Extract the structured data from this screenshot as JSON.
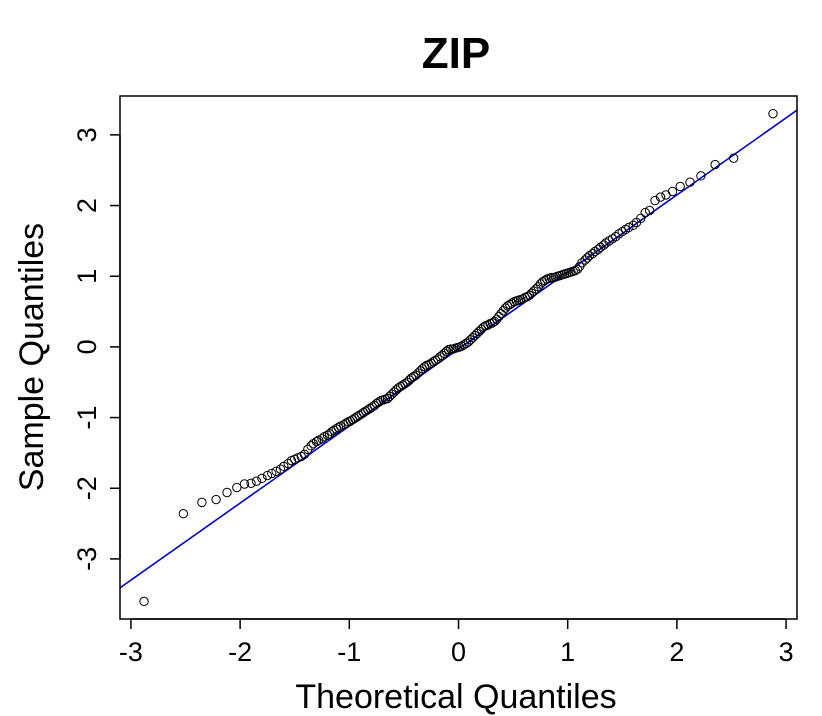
{
  "chart_data": {
    "type": "scatter",
    "title": "ZIP",
    "xlabel": "Theoretical Quantiles",
    "ylabel": "Sample Quantiles",
    "xlim": [
      -3.1,
      3.1
    ],
    "ylim": [
      -3.85,
      3.55
    ],
    "xticks": [
      -3,
      -2,
      -1,
      0,
      1,
      2,
      3
    ],
    "yticks": [
      -3,
      -2,
      -1,
      0,
      1,
      2,
      3
    ],
    "xtick_labels": [
      "-3",
      "-2",
      "-1",
      "0",
      "1",
      "2",
      "3"
    ],
    "ytick_labels": [
      "-3",
      "-2",
      "-1",
      "0",
      "1",
      "2",
      "3"
    ],
    "grid": false,
    "marker": "open-circle",
    "colors": {
      "points": "#000000",
      "reference_line": "#0000cc"
    },
    "reference_line": {
      "slope": 1.09,
      "intercept": -0.03
    },
    "points": [
      [
        -2.88,
        -3.6
      ],
      [
        -2.52,
        -2.36
      ],
      [
        -2.35,
        -2.2
      ],
      [
        -2.22,
        -2.16
      ],
      [
        -2.12,
        -2.06
      ],
      [
        -2.03,
        -1.99
      ],
      [
        -1.96,
        -1.94
      ],
      [
        -1.9,
        -1.93
      ],
      [
        -1.85,
        -1.9
      ],
      [
        -1.8,
        -1.86
      ],
      [
        -1.75,
        -1.82
      ],
      [
        -1.71,
        -1.79
      ],
      [
        -1.67,
        -1.76
      ],
      [
        -1.63,
        -1.73
      ],
      [
        -1.6,
        -1.69
      ],
      [
        -1.56,
        -1.65
      ],
      [
        -1.53,
        -1.61
      ],
      [
        -1.5,
        -1.59
      ],
      [
        -1.47,
        -1.57
      ],
      [
        -1.44,
        -1.55
      ],
      [
        -1.41,
        -1.52
      ],
      [
        -1.38,
        -1.45
      ],
      [
        -1.35,
        -1.4
      ],
      [
        -1.33,
        -1.37
      ],
      [
        -1.3,
        -1.34
      ],
      [
        -1.28,
        -1.32
      ],
      [
        -1.25,
        -1.3
      ],
      [
        -1.23,
        -1.27
      ],
      [
        -1.2,
        -1.25
      ],
      [
        -1.18,
        -1.23
      ],
      [
        -1.16,
        -1.2
      ],
      [
        -1.14,
        -1.18
      ],
      [
        -1.12,
        -1.16
      ],
      [
        -1.1,
        -1.14
      ],
      [
        -1.08,
        -1.12
      ],
      [
        -1.05,
        -1.1
      ],
      [
        -1.03,
        -1.08
      ],
      [
        -1.01,
        -1.06
      ],
      [
        -0.99,
        -1.05
      ],
      [
        -0.97,
        -1.03
      ],
      [
        -0.95,
        -1.01
      ],
      [
        -0.93,
        -0.99
      ],
      [
        -0.91,
        -0.97
      ],
      [
        -0.89,
        -0.95
      ],
      [
        -0.87,
        -0.93
      ],
      [
        -0.85,
        -0.91
      ],
      [
        -0.83,
        -0.89
      ],
      [
        -0.81,
        -0.87
      ],
      [
        -0.79,
        -0.85
      ],
      [
        -0.77,
        -0.83
      ],
      [
        -0.75,
        -0.8
      ],
      [
        -0.73,
        -0.78
      ],
      [
        -0.71,
        -0.76
      ],
      [
        -0.69,
        -0.75
      ],
      [
        -0.67,
        -0.74
      ],
      [
        -0.65,
        -0.73
      ],
      [
        -0.63,
        -0.7
      ],
      [
        -0.61,
        -0.67
      ],
      [
        -0.59,
        -0.64
      ],
      [
        -0.57,
        -0.61
      ],
      [
        -0.55,
        -0.58
      ],
      [
        -0.53,
        -0.56
      ],
      [
        -0.51,
        -0.54
      ],
      [
        -0.49,
        -0.52
      ],
      [
        -0.47,
        -0.5
      ],
      [
        -0.45,
        -0.47
      ],
      [
        -0.43,
        -0.44
      ],
      [
        -0.41,
        -0.42
      ],
      [
        -0.39,
        -0.4
      ],
      [
        -0.37,
        -0.37
      ],
      [
        -0.35,
        -0.34
      ],
      [
        -0.33,
        -0.31
      ],
      [
        -0.31,
        -0.28
      ],
      [
        -0.29,
        -0.26
      ],
      [
        -0.27,
        -0.25
      ],
      [
        -0.25,
        -0.23
      ],
      [
        -0.23,
        -0.21
      ],
      [
        -0.21,
        -0.19
      ],
      [
        -0.19,
        -0.17
      ],
      [
        -0.17,
        -0.14
      ],
      [
        -0.15,
        -0.12
      ],
      [
        -0.13,
        -0.09
      ],
      [
        -0.11,
        -0.06
      ],
      [
        -0.09,
        -0.04
      ],
      [
        -0.07,
        -0.03
      ],
      [
        -0.05,
        -0.03
      ],
      [
        -0.03,
        -0.02
      ],
      [
        -0.01,
        -0.01
      ],
      [
        0.01,
        0.0
      ],
      [
        0.03,
        0.01
      ],
      [
        0.05,
        0.03
      ],
      [
        0.07,
        0.05
      ],
      [
        0.09,
        0.07
      ],
      [
        0.11,
        0.1
      ],
      [
        0.13,
        0.13
      ],
      [
        0.15,
        0.16
      ],
      [
        0.17,
        0.19
      ],
      [
        0.19,
        0.22
      ],
      [
        0.21,
        0.25
      ],
      [
        0.23,
        0.28
      ],
      [
        0.25,
        0.3
      ],
      [
        0.27,
        0.31
      ],
      [
        0.29,
        0.33
      ],
      [
        0.31,
        0.34
      ],
      [
        0.33,
        0.36
      ],
      [
        0.35,
        0.39
      ],
      [
        0.37,
        0.43
      ],
      [
        0.39,
        0.47
      ],
      [
        0.41,
        0.51
      ],
      [
        0.43,
        0.55
      ],
      [
        0.45,
        0.58
      ],
      [
        0.47,
        0.6
      ],
      [
        0.49,
        0.62
      ],
      [
        0.51,
        0.64
      ],
      [
        0.53,
        0.65
      ],
      [
        0.55,
        0.66
      ],
      [
        0.57,
        0.67
      ],
      [
        0.59,
        0.68
      ],
      [
        0.61,
        0.7
      ],
      [
        0.63,
        0.71
      ],
      [
        0.65,
        0.73
      ],
      [
        0.67,
        0.76
      ],
      [
        0.69,
        0.79
      ],
      [
        0.71,
        0.82
      ],
      [
        0.73,
        0.85
      ],
      [
        0.75,
        0.89
      ],
      [
        0.77,
        0.92
      ],
      [
        0.79,
        0.94
      ],
      [
        0.81,
        0.96
      ],
      [
        0.83,
        0.97
      ],
      [
        0.85,
        0.98
      ],
      [
        0.87,
        0.98
      ],
      [
        0.89,
        0.99
      ],
      [
        0.91,
        1.0
      ],
      [
        0.93,
        1.01
      ],
      [
        0.95,
        1.02
      ],
      [
        0.97,
        1.03
      ],
      [
        0.99,
        1.04
      ],
      [
        1.01,
        1.05
      ],
      [
        1.03,
        1.06
      ],
      [
        1.05,
        1.07
      ],
      [
        1.07,
        1.08
      ],
      [
        1.09,
        1.1
      ],
      [
        1.11,
        1.14
      ],
      [
        1.13,
        1.19
      ],
      [
        1.16,
        1.23
      ],
      [
        1.18,
        1.26
      ],
      [
        1.2,
        1.29
      ],
      [
        1.23,
        1.32
      ],
      [
        1.25,
        1.35
      ],
      [
        1.28,
        1.38
      ],
      [
        1.3,
        1.41
      ],
      [
        1.33,
        1.44
      ],
      [
        1.35,
        1.47
      ],
      [
        1.38,
        1.5
      ],
      [
        1.41,
        1.53
      ],
      [
        1.44,
        1.56
      ],
      [
        1.47,
        1.6
      ],
      [
        1.5,
        1.63
      ],
      [
        1.53,
        1.66
      ],
      [
        1.56,
        1.69
      ],
      [
        1.6,
        1.72
      ],
      [
        1.63,
        1.76
      ],
      [
        1.67,
        1.82
      ],
      [
        1.71,
        1.9
      ],
      [
        1.75,
        1.93
      ],
      [
        1.8,
        2.07
      ],
      [
        1.85,
        2.12
      ],
      [
        1.9,
        2.15
      ],
      [
        1.96,
        2.2
      ],
      [
        2.03,
        2.27
      ],
      [
        2.12,
        2.33
      ],
      [
        2.22,
        2.42
      ],
      [
        2.35,
        2.58
      ],
      [
        2.52,
        2.67
      ],
      [
        2.88,
        3.3
      ]
    ]
  }
}
